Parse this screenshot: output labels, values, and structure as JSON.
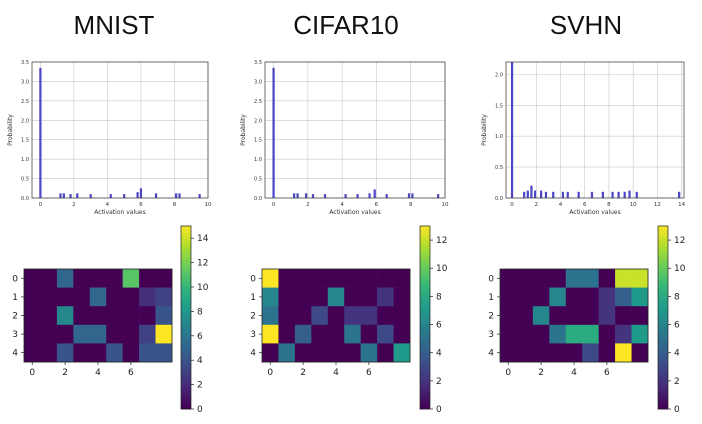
{
  "chart_data": [
    {
      "panel": "MNIST",
      "title": "MNIST",
      "histogram": {
        "type": "bar",
        "xlabel": "Activation values",
        "ylabel": "Probability",
        "xlim": [
          -0.5,
          10
        ],
        "ylim": [
          0,
          3.5
        ],
        "xticks": [
          0,
          2,
          4,
          6,
          8,
          10
        ],
        "yticks": [
          0.0,
          0.5,
          1.0,
          1.5,
          2.0,
          2.5,
          3.0,
          3.5
        ],
        "bar_color": "#4b45c8",
        "bins": [
          {
            "x": 0.0,
            "value": 3.35
          },
          {
            "x": 1.2,
            "value": 0.12
          },
          {
            "x": 1.4,
            "value": 0.12
          },
          {
            "x": 1.8,
            "value": 0.1
          },
          {
            "x": 2.2,
            "value": 0.12
          },
          {
            "x": 3.0,
            "value": 0.1
          },
          {
            "x": 4.2,
            "value": 0.1
          },
          {
            "x": 5.0,
            "value": 0.1
          },
          {
            "x": 5.8,
            "value": 0.15
          },
          {
            "x": 6.0,
            "value": 0.25
          },
          {
            "x": 6.9,
            "value": 0.12
          },
          {
            "x": 8.1,
            "value": 0.12
          },
          {
            "x": 8.3,
            "value": 0.12
          },
          {
            "x": 9.5,
            "value": 0.1
          }
        ]
      },
      "heatmap": {
        "type": "heatmap",
        "xticks": [
          0,
          2,
          4,
          6
        ],
        "yticks": [
          0,
          1,
          2,
          3,
          4
        ],
        "colorbar_ticks": [
          0,
          2,
          4,
          6,
          8,
          10,
          12,
          14
        ],
        "vmin": 0,
        "vmax": 15,
        "values": [
          [
            0,
            0,
            5,
            0,
            0,
            0,
            11,
            0,
            0
          ],
          [
            0,
            0,
            0,
            0,
            5,
            0,
            0,
            2,
            3
          ],
          [
            0,
            0,
            7,
            0,
            0,
            0,
            0,
            0,
            4
          ],
          [
            0,
            0,
            0,
            5,
            5,
            0,
            0,
            3,
            15
          ],
          [
            0,
            0,
            4,
            0,
            0,
            4,
            0,
            4,
            4
          ]
        ]
      }
    },
    {
      "panel": "CIFAR10",
      "title": "CIFAR10",
      "histogram": {
        "type": "bar",
        "xlabel": "Activation values",
        "ylabel": "Probability",
        "xlim": [
          -0.5,
          10
        ],
        "ylim": [
          0,
          3.5
        ],
        "xticks": [
          0,
          2,
          4,
          6,
          8,
          10
        ],
        "yticks": [
          0.0,
          0.5,
          1.0,
          1.5,
          2.0,
          2.5,
          3.0,
          3.5
        ],
        "bar_color": "#4b45c8",
        "bins": [
          {
            "x": 0.0,
            "value": 3.35
          },
          {
            "x": 1.2,
            "value": 0.12
          },
          {
            "x": 1.4,
            "value": 0.12
          },
          {
            "x": 1.9,
            "value": 0.12
          },
          {
            "x": 2.3,
            "value": 0.1
          },
          {
            "x": 3.0,
            "value": 0.1
          },
          {
            "x": 4.2,
            "value": 0.1
          },
          {
            "x": 4.9,
            "value": 0.1
          },
          {
            "x": 5.6,
            "value": 0.12
          },
          {
            "x": 5.9,
            "value": 0.22
          },
          {
            "x": 6.6,
            "value": 0.1
          },
          {
            "x": 7.9,
            "value": 0.12
          },
          {
            "x": 8.1,
            "value": 0.12
          },
          {
            "x": 9.6,
            "value": 0.1
          }
        ]
      },
      "heatmap": {
        "type": "heatmap",
        "xticks": [
          0,
          2,
          4,
          6
        ],
        "yticks": [
          0,
          1,
          2,
          3,
          4
        ],
        "colorbar_ticks": [
          0,
          2,
          4,
          6,
          8,
          10,
          12
        ],
        "vmin": 0,
        "vmax": 13,
        "values": [
          [
            13,
            0,
            0,
            0,
            0,
            0,
            0,
            0,
            0
          ],
          [
            6,
            0,
            0,
            0,
            6,
            0,
            0,
            2,
            0
          ],
          [
            5,
            0,
            0,
            3,
            0,
            2,
            2,
            0,
            0
          ],
          [
            13,
            0,
            4,
            0,
            0,
            5,
            0,
            3,
            0
          ],
          [
            0,
            5,
            0,
            0,
            0,
            0,
            5,
            0,
            7
          ]
        ]
      }
    },
    {
      "panel": "SVHN",
      "title": "SVHN",
      "histogram": {
        "type": "bar",
        "xlabel": "Activation values",
        "ylabel": "Probability",
        "xlim": [
          -0.5,
          14.2
        ],
        "ylim": [
          0,
          2.2
        ],
        "xticks": [
          0,
          2,
          4,
          6,
          8,
          10,
          12,
          14
        ],
        "xtick_labels": [
          "0",
          "2",
          "4",
          "6",
          "8",
          "10",
          "12",
          "14"
        ],
        "yticks": [
          0.0,
          0.5,
          1.0,
          1.5,
          2.0
        ],
        "bar_color": "#4b45c8",
        "bins": [
          {
            "x": 0.0,
            "value": 2.2
          },
          {
            "x": 1.0,
            "value": 0.1
          },
          {
            "x": 1.3,
            "value": 0.12
          },
          {
            "x": 1.6,
            "value": 0.2
          },
          {
            "x": 1.9,
            "value": 0.12
          },
          {
            "x": 2.4,
            "value": 0.12
          },
          {
            "x": 2.8,
            "value": 0.1
          },
          {
            "x": 3.4,
            "value": 0.1
          },
          {
            "x": 4.2,
            "value": 0.1
          },
          {
            "x": 4.6,
            "value": 0.1
          },
          {
            "x": 5.5,
            "value": 0.1
          },
          {
            "x": 6.6,
            "value": 0.1
          },
          {
            "x": 7.5,
            "value": 0.1
          },
          {
            "x": 8.3,
            "value": 0.1
          },
          {
            "x": 8.8,
            "value": 0.1
          },
          {
            "x": 9.3,
            "value": 0.1
          },
          {
            "x": 9.7,
            "value": 0.12
          },
          {
            "x": 10.3,
            "value": 0.1
          },
          {
            "x": 13.8,
            "value": 0.1
          }
        ]
      },
      "heatmap": {
        "type": "heatmap",
        "xticks": [
          0,
          2,
          4,
          6
        ],
        "yticks": [
          0,
          1,
          2,
          3,
          4
        ],
        "colorbar_ticks": [
          0,
          2,
          4,
          6,
          8,
          10,
          12
        ],
        "vmin": 0,
        "vmax": 13,
        "values": [
          [
            0,
            0,
            0,
            0,
            5,
            5,
            0,
            12,
            12
          ],
          [
            0,
            0,
            0,
            6,
            0,
            0,
            2,
            4,
            7
          ],
          [
            0,
            0,
            6,
            0,
            0,
            0,
            2,
            0,
            0
          ],
          [
            0,
            0,
            0,
            5,
            8,
            8,
            0,
            2,
            7
          ],
          [
            0,
            0,
            0,
            0,
            0,
            3,
            0,
            13,
            0
          ]
        ]
      }
    }
  ]
}
